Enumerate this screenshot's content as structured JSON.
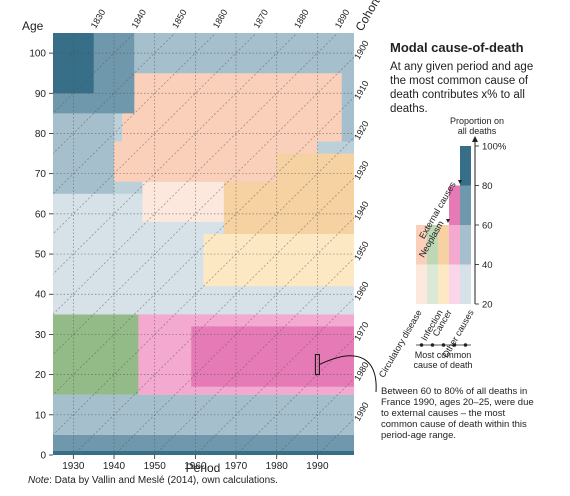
{
  "chart_data": {
    "type": "heatmap",
    "title": "Modal cause-of-death",
    "subtitle": "At any given period and age the most common cause of death contributes x% to all deaths.",
    "xlabel": "Period",
    "ylabel": "Age",
    "cohort_label": "Cohort",
    "xlim": [
      1925,
      1999
    ],
    "ylim": [
      0,
      105
    ],
    "x_ticks": [
      "1930",
      "1940",
      "1950",
      "1960",
      "1970",
      "1980",
      "1990"
    ],
    "y_ticks": [
      "0",
      "10",
      "20",
      "30",
      "40",
      "50",
      "60",
      "70",
      "80",
      "90",
      "100"
    ],
    "cohort_ticks_top": [
      "1830",
      "1840",
      "1850",
      "1860",
      "1870",
      "1880",
      "1890"
    ],
    "cohort_ticks_right": [
      "1900",
      "1910",
      "1920",
      "1930",
      "1940",
      "1950",
      "1960",
      "1970",
      "1980",
      "1990"
    ],
    "cause_categories": [
      "Circulatory diseases",
      "Infection",
      "Neoplasm",
      "External causes",
      "Other causes"
    ],
    "cause_labels_bottom": [
      "Circulatory disease",
      "Infection",
      "Cancer",
      "Other causes"
    ],
    "cause_labels_top": [
      "Neoplasm",
      "External causes"
    ],
    "legend_group_label": "Most common cause of death",
    "proportion_title": "Proportion on all deaths",
    "proportion_ticks": [
      "20",
      "40",
      "60",
      "80",
      "100%"
    ],
    "proportion_levels": [
      20,
      40,
      60,
      80,
      100
    ],
    "palette": {
      "Circulatory diseases": [
        "#fde8de",
        "#fbd0ba",
        "#f8ae8c",
        "#f27f5e"
      ],
      "Infection": [
        "#dde9d7",
        "#bed7b5",
        "#93bb87",
        "#6c9e5f"
      ],
      "Neoplasm": [
        "#fde8c4",
        "#f6d2a2",
        "#f0b178",
        "#e8955a"
      ],
      "External causes": [
        "#fbd6ea",
        "#f3a9d0",
        "#e67ab6",
        "#d6488f"
      ],
      "Other causes": [
        "#d6e2e8",
        "#a5bfcc",
        "#6f98ac",
        "#366f87"
      ],
      "missing": [
        "#0e5d77"
      ]
    },
    "regions": [
      {
        "cause": "Other causes",
        "x0": 1925,
        "x1": 1999,
        "y0": 0,
        "y1": 1,
        "p": 100
      },
      {
        "cause": "Other causes",
        "x0": 1925,
        "x1": 1999,
        "y0": 1,
        "y1": 5,
        "p": 60
      },
      {
        "cause": "Other causes",
        "x0": 1925,
        "x1": 1999,
        "y0": 5,
        "y1": 15,
        "p": 50
      },
      {
        "cause": "Other causes",
        "x0": 1925,
        "x1": 1999,
        "y0": 15,
        "y1": 35,
        "p": 35
      },
      {
        "cause": "Infection",
        "x0": 1925,
        "x1": 1946,
        "y0": 15,
        "y1": 35,
        "p": 60
      },
      {
        "cause": "Infection",
        "x0": 1925,
        "x1": 1946,
        "y0": 35,
        "y1": 45,
        "p": 35
      },
      {
        "cause": "External causes",
        "x0": 1946,
        "x1": 1999,
        "y0": 15,
        "y1": 35,
        "p": 40
      },
      {
        "cause": "External causes",
        "x0": 1959,
        "x1": 1999,
        "y0": 17,
        "y1": 32,
        "p": 60
      },
      {
        "cause": "External causes",
        "x0": 1966,
        "x1": 1998,
        "y0": 18,
        "y1": 27,
        "p": 70
      },
      {
        "cause": "External causes",
        "x0": 1985,
        "x1": 1999,
        "y0": 35,
        "y1": 40,
        "p": 30
      },
      {
        "cause": "Other causes",
        "x0": 1925,
        "x1": 1999,
        "y0": 35,
        "y1": 45,
        "p": 30
      },
      {
        "cause": "Other causes",
        "x0": 1925,
        "x1": 1999,
        "y0": 45,
        "y1": 55,
        "p": 25
      },
      {
        "cause": "Neoplasm",
        "x0": 1962,
        "x1": 1999,
        "y0": 42,
        "y1": 55,
        "p": 35
      },
      {
        "cause": "Other causes",
        "x0": 1925,
        "x1": 1999,
        "y0": 55,
        "y1": 65,
        "p": 30
      },
      {
        "cause": "Neoplasm",
        "x0": 1967,
        "x1": 1999,
        "y0": 55,
        "y1": 68,
        "p": 40
      },
      {
        "cause": "Circulatory diseases",
        "x0": 1947,
        "x1": 1967,
        "y0": 58,
        "y1": 68,
        "p": 30
      },
      {
        "cause": "Circulatory diseases",
        "x0": 1940,
        "x1": 1990,
        "y0": 68,
        "y1": 78,
        "p": 40
      },
      {
        "cause": "Other causes",
        "x0": 1925,
        "x1": 1940,
        "y0": 65,
        "y1": 85,
        "p": 40
      },
      {
        "cause": "Circulatory diseases",
        "x0": 1942,
        "x1": 1996,
        "y0": 78,
        "y1": 95,
        "p": 50
      },
      {
        "cause": "Neoplasm",
        "x0": 1980,
        "x1": 1999,
        "y0": 58,
        "y1": 75,
        "p": 45
      },
      {
        "cause": "Other causes",
        "x0": 1925,
        "x1": 1945,
        "y0": 85,
        "y1": 105,
        "p": 60
      },
      {
        "cause": "Other causes",
        "x0": 1925,
        "x1": 1935,
        "y0": 90,
        "y1": 105,
        "p": 80
      },
      {
        "cause": "Other causes",
        "x0": 1945,
        "x1": 1999,
        "y0": 95,
        "y1": 105,
        "p": 50
      },
      {
        "cause": "Other causes",
        "x0": 1996,
        "x1": 1999,
        "y0": 78,
        "y1": 95,
        "p": 40
      }
    ],
    "highlight": {
      "x": 1990,
      "y0": 20,
      "y1": 25
    },
    "annotation": "Between 60 to 80% of all deaths in France 1990, ages 20–25, were due to external causes – the most common cause of death within this period-age range."
  },
  "note_label": "Note",
  "note_text": ": Data by Vallin and Meslé (2014), own calculations."
}
